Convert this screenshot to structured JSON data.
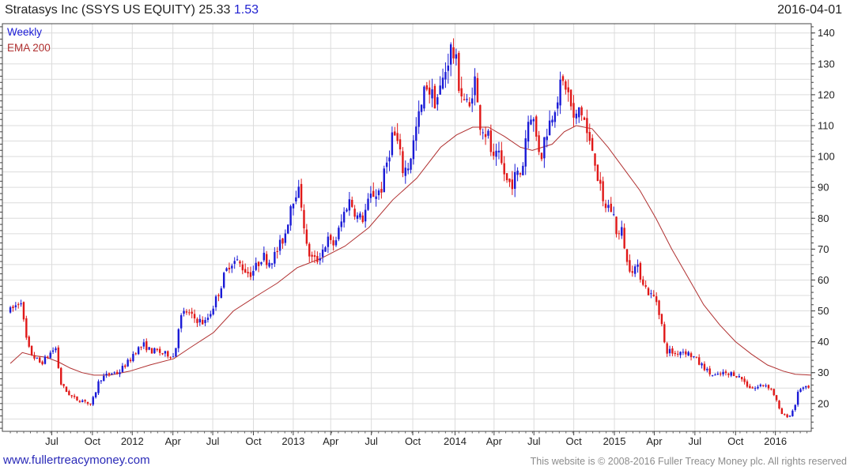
{
  "header": {
    "title": "Stratasys Inc (SSYS US EQUITY) 25.33",
    "change": "1.53",
    "date": "2016-04-01"
  },
  "footer": {
    "link": "www.fullertreacymoney.com",
    "copyright": "This website is © 2008-2016 Fuller Treacy Money plc. All rights reserved"
  },
  "colors": {
    "up": "#1a1ad6",
    "down": "#e01818",
    "ema": "#b03030",
    "grid": "#dcdcdc"
  },
  "chart_data": {
    "type": "candlestick",
    "title": "Stratasys Inc (SSYS US EQUITY) 25.33 1.53",
    "frequency_label": "Weekly",
    "indicator_label": "EMA 200",
    "ylim": [
      11,
      143
    ],
    "yticks": [
      20,
      30,
      40,
      50,
      60,
      70,
      80,
      90,
      100,
      110,
      120,
      130,
      140
    ],
    "xlim": [
      0,
      1015
    ],
    "xticks": [
      {
        "x": 62,
        "label": "Jul"
      },
      {
        "x": 113,
        "label": "Oct"
      },
      {
        "x": 163,
        "label": "2012"
      },
      {
        "x": 214,
        "label": "Apr"
      },
      {
        "x": 264,
        "label": "Jul"
      },
      {
        "x": 315,
        "label": "Oct"
      },
      {
        "x": 365,
        "label": "2013"
      },
      {
        "x": 412,
        "label": "Apr"
      },
      {
        "x": 463,
        "label": "Jul"
      },
      {
        "x": 515,
        "label": "Oct"
      },
      {
        "x": 568,
        "label": "2014"
      },
      {
        "x": 617,
        "label": "Apr"
      },
      {
        "x": 667,
        "label": "Jul"
      },
      {
        "x": 717,
        "label": "Oct"
      },
      {
        "x": 768,
        "label": "2015"
      },
      {
        "x": 818,
        "label": "Apr"
      },
      {
        "x": 869,
        "label": "Jul"
      },
      {
        "x": 920,
        "label": "Oct"
      },
      {
        "x": 970,
        "label": "2016"
      }
    ],
    "price_path": [
      [
        10,
        50
      ],
      [
        18,
        52
      ],
      [
        24,
        54
      ],
      [
        28,
        43
      ],
      [
        34,
        37
      ],
      [
        40,
        35
      ],
      [
        48,
        33
      ],
      [
        56,
        35
      ],
      [
        62,
        37
      ],
      [
        68,
        38
      ],
      [
        72,
        27
      ],
      [
        80,
        24
      ],
      [
        88,
        22
      ],
      [
        96,
        21
      ],
      [
        104,
        21
      ],
      [
        110,
        19
      ],
      [
        116,
        23
      ],
      [
        122,
        28
      ],
      [
        130,
        29
      ],
      [
        138,
        30
      ],
      [
        146,
        30
      ],
      [
        152,
        32
      ],
      [
        160,
        34
      ],
      [
        166,
        37
      ],
      [
        172,
        38
      ],
      [
        178,
        39
      ],
      [
        186,
        37
      ],
      [
        194,
        37
      ],
      [
        202,
        36
      ],
      [
        210,
        36
      ],
      [
        216,
        35
      ],
      [
        222,
        47
      ],
      [
        230,
        50
      ],
      [
        238,
        48
      ],
      [
        246,
        47
      ],
      [
        254,
        46
      ],
      [
        262,
        50
      ],
      [
        270,
        55
      ],
      [
        278,
        61
      ],
      [
        286,
        66
      ],
      [
        294,
        66
      ],
      [
        302,
        64
      ],
      [
        310,
        62
      ],
      [
        318,
        64
      ],
      [
        326,
        68
      ],
      [
        334,
        66
      ],
      [
        342,
        68
      ],
      [
        350,
        72
      ],
      [
        356,
        76
      ],
      [
        362,
        85
      ],
      [
        370,
        90
      ],
      [
        376,
        84
      ],
      [
        382,
        70
      ],
      [
        388,
        67
      ],
      [
        394,
        66
      ],
      [
        402,
        70
      ],
      [
        408,
        73
      ],
      [
        414,
        71
      ],
      [
        420,
        74
      ],
      [
        428,
        81
      ],
      [
        434,
        86
      ],
      [
        440,
        84
      ],
      [
        446,
        80
      ],
      [
        452,
        80
      ],
      [
        458,
        84
      ],
      [
        464,
        88
      ],
      [
        470,
        88
      ],
      [
        476,
        90
      ],
      [
        484,
        100
      ],
      [
        490,
        108
      ],
      [
        496,
        104
      ],
      [
        502,
        96
      ],
      [
        508,
        96
      ],
      [
        514,
        102
      ],
      [
        520,
        110
      ],
      [
        526,
        116
      ],
      [
        532,
        124
      ],
      [
        538,
        120
      ],
      [
        544,
        118
      ],
      [
        550,
        122
      ],
      [
        556,
        128
      ],
      [
        562,
        135
      ],
      [
        568,
        132
      ],
      [
        574,
        122
      ],
      [
        580,
        118
      ],
      [
        586,
        115
      ],
      [
        592,
        127
      ],
      [
        598,
        112
      ],
      [
        604,
        109
      ],
      [
        610,
        106
      ],
      [
        616,
        98
      ],
      [
        622,
        100
      ],
      [
        628,
        96
      ],
      [
        634,
        91
      ],
      [
        640,
        92
      ],
      [
        646,
        94
      ],
      [
        652,
        95
      ],
      [
        658,
        110
      ],
      [
        664,
        115
      ],
      [
        670,
        106
      ],
      [
        676,
        100
      ],
      [
        682,
        108
      ],
      [
        688,
        112
      ],
      [
        694,
        118
      ],
      [
        700,
        122
      ],
      [
        706,
        124
      ],
      [
        712,
        118
      ],
      [
        718,
        110
      ],
      [
        724,
        116
      ],
      [
        730,
        112
      ],
      [
        736,
        104
      ],
      [
        742,
        102
      ],
      [
        748,
        92
      ],
      [
        754,
        84
      ],
      [
        760,
        84
      ],
      [
        766,
        82
      ],
      [
        772,
        74
      ],
      [
        778,
        76
      ],
      [
        784,
        65
      ],
      [
        790,
        64
      ],
      [
        796,
        64
      ],
      [
        802,
        61
      ],
      [
        808,
        57
      ],
      [
        814,
        55
      ],
      [
        820,
        54
      ],
      [
        826,
        48
      ],
      [
        832,
        37
      ],
      [
        838,
        37
      ],
      [
        844,
        36
      ],
      [
        850,
        37
      ],
      [
        856,
        37
      ],
      [
        862,
        36
      ],
      [
        868,
        35
      ],
      [
        874,
        33
      ],
      [
        880,
        32
      ],
      [
        886,
        30
      ],
      [
        892,
        29
      ],
      [
        898,
        29
      ],
      [
        904,
        30
      ],
      [
        910,
        29
      ],
      [
        916,
        30
      ],
      [
        922,
        29
      ],
      [
        928,
        28
      ],
      [
        934,
        26
      ],
      [
        940,
        25
      ],
      [
        946,
        25
      ],
      [
        952,
        26
      ],
      [
        958,
        26
      ],
      [
        964,
        25
      ],
      [
        970,
        22
      ],
      [
        976,
        17
      ],
      [
        982,
        16
      ],
      [
        988,
        16
      ],
      [
        994,
        19
      ],
      [
        1000,
        25
      ],
      [
        1006,
        25
      ],
      [
        1012,
        25
      ]
    ],
    "ema_200": [
      [
        10,
        33
      ],
      [
        25,
        36.5
      ],
      [
        40,
        35.5
      ],
      [
        55,
        35
      ],
      [
        70,
        33.5
      ],
      [
        85,
        31.5
      ],
      [
        100,
        30
      ],
      [
        115,
        29.2
      ],
      [
        135,
        29.2
      ],
      [
        160,
        30.5
      ],
      [
        185,
        32.5
      ],
      [
        215,
        34.5
      ],
      [
        235,
        38
      ],
      [
        265,
        43
      ],
      [
        290,
        50
      ],
      [
        320,
        55
      ],
      [
        345,
        59
      ],
      [
        370,
        64
      ],
      [
        400,
        67
      ],
      [
        430,
        71
      ],
      [
        460,
        77
      ],
      [
        490,
        86
      ],
      [
        520,
        93
      ],
      [
        550,
        103
      ],
      [
        570,
        107
      ],
      [
        590,
        109.5
      ],
      [
        610,
        109.5
      ],
      [
        630,
        106.5
      ],
      [
        650,
        103
      ],
      [
        665,
        102
      ],
      [
        690,
        104
      ],
      [
        705,
        108
      ],
      [
        720,
        110
      ],
      [
        740,
        109
      ],
      [
        760,
        103
      ],
      [
        780,
        96
      ],
      [
        800,
        89
      ],
      [
        820,
        80
      ],
      [
        840,
        70
      ],
      [
        860,
        61
      ],
      [
        880,
        52
      ],
      [
        900,
        45.5
      ],
      [
        920,
        40
      ],
      [
        940,
        36
      ],
      [
        960,
        32.5
      ],
      [
        980,
        30.5
      ],
      [
        995,
        29.5
      ],
      [
        1015,
        29.2
      ]
    ]
  }
}
